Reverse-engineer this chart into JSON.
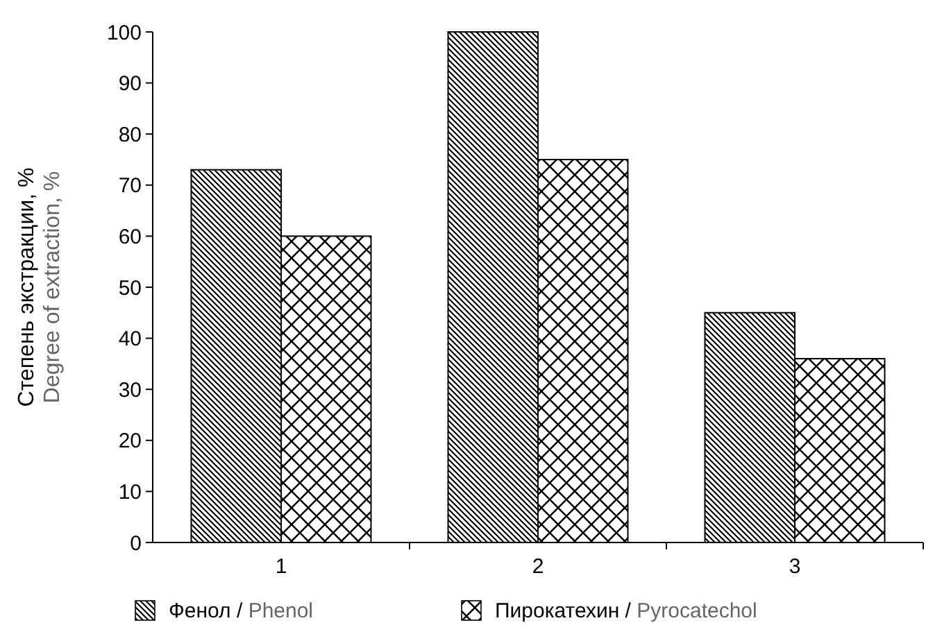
{
  "chart_data": {
    "type": "bar",
    "ylabel": "Степень экстракции, %\nDegree of extraction, %",
    "categories": [
      "1",
      "2",
      "3"
    ],
    "series": [
      {
        "name": "Фенол / Phenol",
        "color": "#000000",
        "values": [
          73,
          100,
          45
        ]
      },
      {
        "name": "Пирокатехин / Pyrocatechol",
        "color": "#000000",
        "values": [
          60,
          75,
          36
        ]
      }
    ],
    "ylim": [
      0,
      100
    ],
    "yticks": [
      0,
      10,
      20,
      30,
      40,
      50,
      60,
      70,
      80,
      90,
      100
    ],
    "grid": false,
    "legend": "bottom"
  }
}
